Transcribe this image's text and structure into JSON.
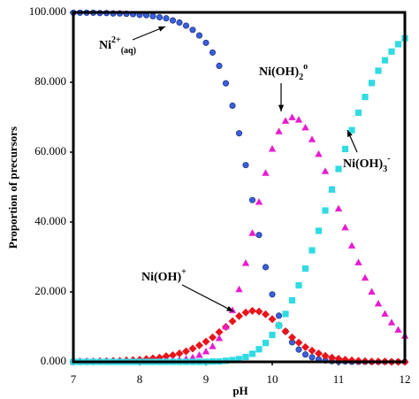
{
  "chart_data": {
    "type": "scatter",
    "x_label": "pH",
    "y_label": "Proportion of precursors",
    "xlim": [
      7,
      12
    ],
    "ylim": [
      0,
      100
    ],
    "xticks": [
      7,
      8,
      9,
      10,
      11,
      12
    ],
    "yticks": [
      {
        "value": 0,
        "label": "0.000"
      },
      {
        "value": 20,
        "label": "20.000"
      },
      {
        "value": 40,
        "label": "40.000"
      },
      {
        "value": 60,
        "label": "60.000"
      },
      {
        "value": 80,
        "label": "80.000"
      },
      {
        "value": 100,
        "label": "100.000"
      }
    ],
    "x": [
      7.0,
      7.1,
      7.2,
      7.3,
      7.4,
      7.5,
      7.6,
      7.7,
      7.8,
      7.9,
      8.0,
      8.1,
      8.2,
      8.3,
      8.4,
      8.5,
      8.6,
      8.7,
      8.8,
      8.9,
      9.0,
      9.1,
      9.2,
      9.3,
      9.4,
      9.5,
      9.6,
      9.7,
      9.8,
      9.9,
      10.0,
      10.1,
      10.2,
      10.3,
      10.4,
      10.5,
      10.6,
      10.7,
      10.8,
      10.9,
      11.0,
      11.1,
      11.2,
      11.3,
      11.4,
      11.5,
      11.6,
      11.7,
      11.8,
      11.9,
      12.0
    ],
    "series": [
      {
        "marker": "circle",
        "color": "#3a5fd8",
        "values": [
          99.9,
          99.9,
          99.9,
          99.9,
          99.8,
          99.8,
          99.7,
          99.7,
          99.6,
          99.5,
          99.3,
          99.2,
          98.9,
          98.6,
          98.3,
          97.7,
          97.1,
          96.2,
          95.0,
          93.4,
          91.3,
          88.5,
          84.7,
          79.7,
          73.3,
          65.4,
          56.3,
          46.3,
          36.3,
          27.1,
          19.3,
          13.2,
          8.7,
          5.6,
          3.5,
          2.1,
          1.3,
          0.7,
          0.4,
          0.2,
          0.1,
          0.1,
          0.0,
          0.0,
          0.0,
          0.0,
          0.0,
          0.0,
          0.0,
          0.0,
          0.0
        ]
      },
      {
        "marker": "diamond",
        "color": "#e8141c",
        "values": [
          0.1,
          0.1,
          0.1,
          0.1,
          0.2,
          0.2,
          0.3,
          0.3,
          0.4,
          0.5,
          0.6,
          0.8,
          1.0,
          1.2,
          1.6,
          1.9,
          2.4,
          3.0,
          3.8,
          4.7,
          5.8,
          7.0,
          8.5,
          10.0,
          11.6,
          13.1,
          14.1,
          14.6,
          14.4,
          13.6,
          12.2,
          10.4,
          8.7,
          7.0,
          5.5,
          4.2,
          3.2,
          2.4,
          1.7,
          1.2,
          0.9,
          0.6,
          0.4,
          0.3,
          0.2,
          0.1,
          0.1,
          0.1,
          0.0,
          0.0,
          0.0
        ]
      },
      {
        "marker": "triangle",
        "color": "#e81ccf",
        "values": [
          0.0,
          0.0,
          0.0,
          0.0,
          0.0,
          0.0,
          0.0,
          0.0,
          0.0,
          0.0,
          0.0,
          0.0,
          0.1,
          0.1,
          0.2,
          0.3,
          0.5,
          0.8,
          1.2,
          1.9,
          2.9,
          4.4,
          6.7,
          10.0,
          14.7,
          20.7,
          28.2,
          36.8,
          45.7,
          54.0,
          60.9,
          65.9,
          68.9,
          69.9,
          69.2,
          67.0,
          63.6,
          59.4,
          54.5,
          49.3,
          43.8,
          38.4,
          33.2,
          28.4,
          24.0,
          20.0,
          16.6,
          13.7,
          11.2,
          9.1,
          7.4
        ]
      },
      {
        "marker": "square",
        "color": "#30dbe3",
        "values": [
          0.0,
          0.0,
          0.0,
          0.0,
          0.0,
          0.0,
          0.0,
          0.0,
          0.0,
          0.0,
          0.0,
          0.0,
          0.0,
          0.0,
          0.0,
          0.0,
          0.0,
          0.0,
          0.0,
          0.0,
          0.0,
          0.1,
          0.1,
          0.3,
          0.5,
          0.8,
          1.4,
          2.3,
          3.6,
          5.4,
          7.7,
          10.4,
          13.7,
          17.6,
          21.9,
          26.7,
          31.9,
          37.5,
          43.3,
          49.3,
          55.2,
          60.9,
          66.3,
          71.3,
          75.8,
          79.8,
          83.3,
          86.3,
          88.8,
          90.9,
          92.6
        ]
      }
    ],
    "annotations": [
      {
        "text": "Ni",
        "sup": "2+",
        "sub": "(aq)"
      },
      {
        "text": "Ni(OH)",
        "sub": "2",
        "sup": "o"
      },
      {
        "text": "Ni(OH)",
        "sub": "3",
        "sup": "-"
      },
      {
        "text": "Ni(OH)",
        "sup": "+"
      }
    ]
  }
}
